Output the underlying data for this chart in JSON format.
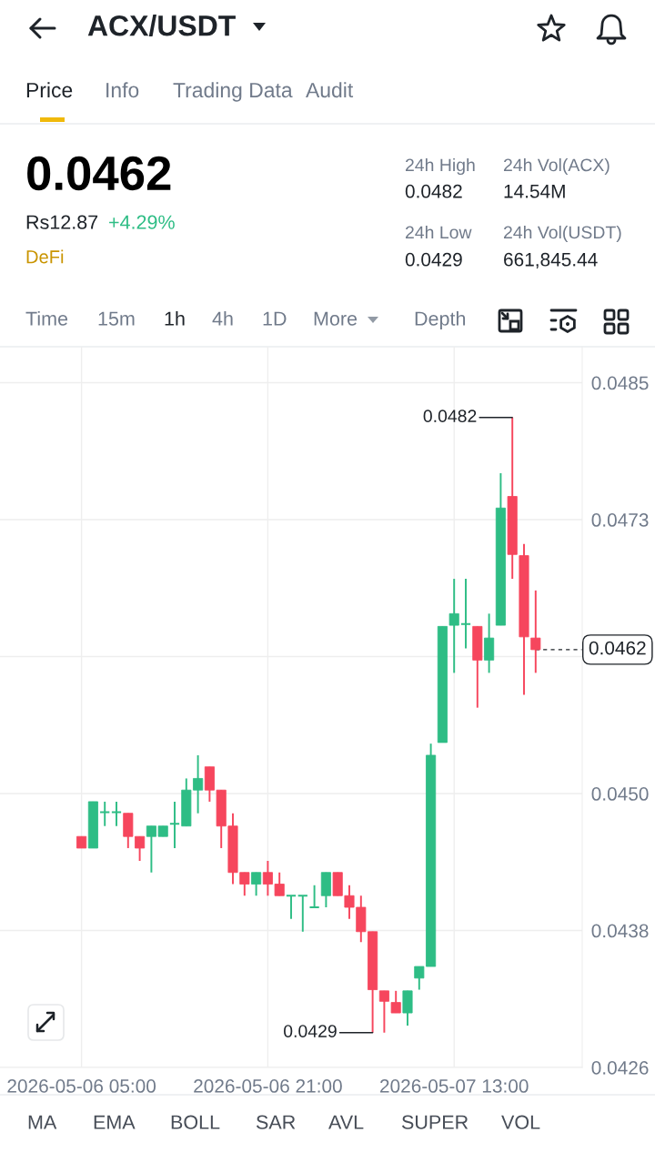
{
  "chart_data": {
    "type": "candlestick",
    "title": "ACX/USDT",
    "annotations": [
      "Price",
      "Info",
      "Trading Data",
      "Audit",
      "0.0462",
      "Rs12.87",
      "+4.29%",
      "DeFi",
      "24h High",
      "0.0482",
      "24h Vol(ACX)",
      "14.54M",
      "24h Low",
      "0.0429",
      "24h Vol(USDT)",
      "661,845.44",
      "Time",
      "15m",
      "1h",
      "4h",
      "1D",
      "More",
      "Depth",
      "MA",
      "EMA",
      "BOLL",
      "SAR",
      "AVL",
      "SUPER",
      "VOL",
      {
        "text": "0.0482",
        "x": "2026-05-07T18:00",
        "y": 0.0482
      },
      {
        "text": "0.0429",
        "x": "2026-05-07T06:00",
        "y": 0.0429
      }
    ],
    "x": [
      "2026-05-06T05:00",
      "2026-05-06T06:00",
      "2026-05-06T07:00",
      "2026-05-06T08:00",
      "2026-05-06T09:00",
      "2026-05-06T10:00",
      "2026-05-06T11:00",
      "2026-05-06T12:00",
      "2026-05-06T13:00",
      "2026-05-06T14:00",
      "2026-05-06T15:00",
      "2026-05-06T16:00",
      "2026-05-06T17:00",
      "2026-05-06T18:00",
      "2026-05-06T19:00",
      "2026-05-06T20:00",
      "2026-05-06T21:00",
      "2026-05-06T22:00",
      "2026-05-06T23:00",
      "2026-05-07T00:00",
      "2026-05-07T01:00",
      "2026-05-07T02:00",
      "2026-05-07T03:00",
      "2026-05-07T04:00",
      "2026-05-07T05:00",
      "2026-05-07T06:00",
      "2026-05-07T07:00",
      "2026-05-07T08:00",
      "2026-05-07T09:00",
      "2026-05-07T10:00",
      "2026-05-07T11:00",
      "2026-05-07T12:00",
      "2026-05-07T13:00",
      "2026-05-07T14:00",
      "2026-05-07T15:00",
      "2026-05-07T16:00",
      "2026-05-07T17:00",
      "2026-05-07T18:00",
      "2026-05-07T19:00",
      "2026-05-07T20:00"
    ],
    "ohlc": [
      [
        0.04459,
        0.04459,
        0.04449,
        0.04449
      ],
      [
        0.04449,
        0.04489,
        0.04449,
        0.04489
      ],
      [
        0.0448,
        0.04489,
        0.04468,
        0.0448
      ],
      [
        0.0448,
        0.04489,
        0.04468,
        0.0448
      ],
      [
        0.04479,
        0.04479,
        0.04449,
        0.04459
      ],
      [
        0.04459,
        0.04459,
        0.04438,
        0.04449
      ],
      [
        0.04459,
        0.04468,
        0.04428,
        0.04468
      ],
      [
        0.04459,
        0.04468,
        0.04459,
        0.04468
      ],
      [
        0.0447,
        0.04489,
        0.04449,
        0.0447
      ],
      [
        0.04468,
        0.04509,
        0.04468,
        0.04499
      ],
      [
        0.04499,
        0.04529,
        0.04479,
        0.04509
      ],
      [
        0.04519,
        0.04519,
        0.04489,
        0.04499
      ],
      [
        0.04499,
        0.04499,
        0.04449,
        0.04468
      ],
      [
        0.04468,
        0.04479,
        0.04418,
        0.04428
      ],
      [
        0.04428,
        0.04428,
        0.04408,
        0.04418
      ],
      [
        0.04418,
        0.04428,
        0.04408,
        0.04428
      ],
      [
        0.04428,
        0.04438,
        0.04408,
        0.04418
      ],
      [
        0.04418,
        0.04428,
        0.04408,
        0.04408
      ],
      [
        0.04408,
        0.04408,
        0.04388,
        0.04408
      ],
      [
        0.04408,
        0.04408,
        0.04377,
        0.04408
      ],
      [
        0.04398,
        0.04417,
        0.04398,
        0.04398
      ],
      [
        0.04408,
        0.04428,
        0.04398,
        0.04428
      ],
      [
        0.04428,
        0.04428,
        0.04408,
        0.04408
      ],
      [
        0.04408,
        0.04417,
        0.04388,
        0.04398
      ],
      [
        0.04398,
        0.04408,
        0.04368,
        0.04377
      ],
      [
        0.04377,
        0.04377,
        0.0429,
        0.04327
      ],
      [
        0.04326,
        0.04326,
        0.0429,
        0.04317
      ],
      [
        0.04316,
        0.04326,
        0.04307,
        0.04307
      ],
      [
        0.04307,
        0.04326,
        0.04296,
        0.04326
      ],
      [
        0.04337,
        0.04347,
        0.04327,
        0.04347
      ],
      [
        0.04347,
        0.04539,
        0.04347,
        0.04529
      ],
      [
        0.0454,
        0.0464,
        0.0454,
        0.0464
      ],
      [
        0.04641,
        0.04681,
        0.046,
        0.04651
      ],
      [
        0.04642,
        0.04681,
        0.04621,
        0.04642
      ],
      [
        0.0464,
        0.0464,
        0.0457,
        0.04611
      ],
      [
        0.04611,
        0.04651,
        0.046,
        0.0463
      ],
      [
        0.04641,
        0.04772,
        0.04641,
        0.04742
      ],
      [
        0.04752,
        0.0482,
        0.04681,
        0.04702
      ],
      [
        0.04701,
        0.04711,
        0.04581,
        0.04631
      ],
      [
        0.0463,
        0.04671,
        0.046,
        0.0462
      ]
    ],
    "colors": [
      "#f6465d",
      "#2ebd85",
      "#2ebd85",
      "#2ebd85",
      "#f6465d",
      "#f6465d",
      "#2ebd85",
      "#2ebd85",
      "#2ebd85",
      "#2ebd85",
      "#2ebd85",
      "#f6465d",
      "#f6465d",
      "#f6465d",
      "#f6465d",
      "#2ebd85",
      "#f6465d",
      "#f6465d",
      "#2ebd85",
      "#2ebd85",
      "#2ebd85",
      "#2ebd85",
      "#f6465d",
      "#f6465d",
      "#f6465d",
      "#f6465d",
      "#f6465d",
      "#f6465d",
      "#2ebd85",
      "#2ebd85",
      "#2ebd85",
      "#2ebd85",
      "#2ebd85",
      "#2ebd85",
      "#f6465d",
      "#2ebd85",
      "#2ebd85",
      "#f6465d",
      "#f6465d",
      "#f6465d"
    ],
    "xlim": [
      "2026-05-05T22:00",
      "2026-05-08T00:00"
    ],
    "xticks": [
      {
        "value": "2026-05-06T05:00",
        "label": "2026-05-06 05:00"
      },
      {
        "value": "2026-05-06T21:00",
        "label": "2026-05-06 21:00"
      },
      {
        "value": "2026-05-07T13:00",
        "label": "2026-05-07 13:00"
      }
    ],
    "ylim": [
      0.0426,
      0.04881
    ],
    "yticks": [
      0.0426,
      {
        "value": 0.04378,
        "label": "0.0438"
      },
      {
        "value": 0.04496,
        "label": "0.0450"
      },
      {
        "value": 0.04614,
        "label": null
      },
      {
        "value": 0.04732,
        "label": "0.0473"
      },
      0.0485
    ],
    "grid": true,
    "ref_lines": [
      {
        "axis": "y",
        "value": 0.0462,
        "label": "0.0462",
        "color": "#1e2329",
        "line_style": "dashed"
      }
    ]
  }
}
